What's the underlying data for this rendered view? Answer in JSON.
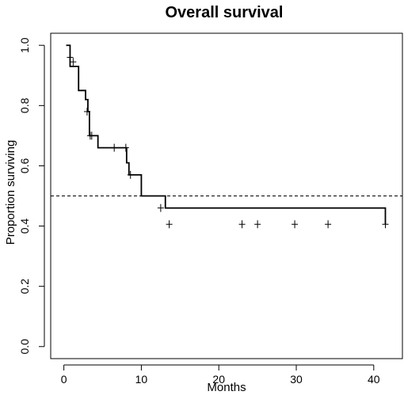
{
  "chart_data": {
    "type": "line",
    "title": "Overall survival",
    "xlabel": "Months",
    "ylabel": "Proportion surviving",
    "xlim": [
      0,
      42
    ],
    "ylim": [
      0,
      1
    ],
    "x_ticks": [
      0,
      10,
      20,
      30,
      40
    ],
    "y_ticks": [
      0.0,
      0.2,
      0.4,
      0.6,
      0.8,
      1.0
    ],
    "x_tick_labels": [
      "0",
      "10",
      "20",
      "30",
      "40"
    ],
    "y_tick_labels": [
      "0.0",
      "0.2",
      "0.4",
      "0.6",
      "0.8",
      "1.0"
    ],
    "grid": false,
    "legend": "none",
    "series": [
      {
        "step": "post",
        "color": "#000000",
        "x": [
          0.3,
          0.8,
          1.9,
          2.8,
          3.1,
          3.3,
          4.4,
          8.1,
          8.4,
          10.0,
          13.1,
          41.5
        ],
        "y": [
          1.0,
          0.93,
          0.85,
          0.82,
          0.78,
          0.7,
          0.66,
          0.61,
          0.57,
          0.5,
          0.46,
          0.406
        ]
      }
    ],
    "censor_marks": {
      "x": [
        0.8,
        1.2,
        3.0,
        3.4,
        3.6,
        6.5,
        8.0,
        8.6,
        12.5,
        13.6,
        23.0,
        25.0,
        29.8,
        34.1,
        41.5
      ],
      "y": [
        0.96,
        0.945,
        0.78,
        0.7,
        0.7,
        0.66,
        0.66,
        0.57,
        0.46,
        0.406,
        0.406,
        0.406,
        0.406,
        0.406,
        0.406
      ]
    },
    "reference_line": {
      "y": 0.5,
      "style": "dashed"
    }
  }
}
